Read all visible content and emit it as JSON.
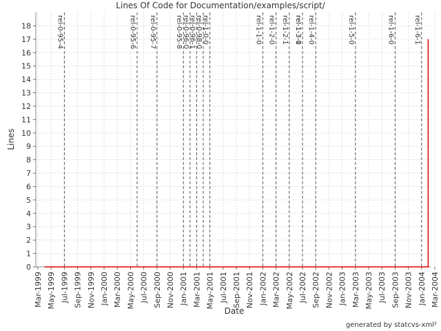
{
  "chart_data": {
    "type": "line",
    "title": "Lines Of Code for Documentation/examples/script/",
    "x_label": "Date",
    "y_label": "Lines",
    "footer": "generated by statcvs-xml²",
    "grid": true,
    "xlim": [
      "1999-03",
      "2004-03"
    ],
    "xticks": [
      {
        "value": "1999-03",
        "label": "Mar-1999"
      },
      {
        "value": "1999-05",
        "label": "May-1999"
      },
      {
        "value": "1999-07",
        "label": "Jul-1999"
      },
      {
        "value": "1999-09",
        "label": "Sep-1999"
      },
      {
        "value": "1999-11",
        "label": "Nov-1999"
      },
      {
        "value": "2000-01",
        "label": "Jan-2000"
      },
      {
        "value": "2000-03",
        "label": "Mar-2000"
      },
      {
        "value": "2000-05",
        "label": "May-2000"
      },
      {
        "value": "2000-07",
        "label": "Jul-2000"
      },
      {
        "value": "2000-09",
        "label": "Sep-2000"
      },
      {
        "value": "2000-11",
        "label": "Nov-2000"
      },
      {
        "value": "2001-01",
        "label": "Jan-2001"
      },
      {
        "value": "2001-03",
        "label": "Mar-2001"
      },
      {
        "value": "2001-05",
        "label": "May-2001"
      },
      {
        "value": "2001-07",
        "label": "Jul-2001"
      },
      {
        "value": "2001-09",
        "label": "Sep-2001"
      },
      {
        "value": "2001-11",
        "label": "Nov-2001"
      },
      {
        "value": "2002-01",
        "label": "Jan-2002"
      },
      {
        "value": "2002-03",
        "label": "Mar-2002"
      },
      {
        "value": "2002-05",
        "label": "May-2002"
      },
      {
        "value": "2002-07",
        "label": "Jul-2002"
      },
      {
        "value": "2002-09",
        "label": "Sep-2002"
      },
      {
        "value": "2002-11",
        "label": "Nov-2002"
      },
      {
        "value": "2003-01",
        "label": "Jan-2003"
      },
      {
        "value": "2003-03",
        "label": "Mar-2003"
      },
      {
        "value": "2003-05",
        "label": "May-2003"
      },
      {
        "value": "2003-07",
        "label": "Jul-2003"
      },
      {
        "value": "2003-09",
        "label": "Sep-2003"
      },
      {
        "value": "2003-11",
        "label": "Nov-2003"
      },
      {
        "value": "2004-01",
        "label": "Jan-2004"
      },
      {
        "value": "2004-03",
        "label": "Mar-2004"
      }
    ],
    "ylim": [
      0,
      19
    ],
    "yticks": [
      0,
      1,
      2,
      3,
      4,
      5,
      6,
      7,
      8,
      9,
      10,
      11,
      12,
      13,
      14,
      15,
      16,
      17,
      18
    ],
    "series": [
      {
        "name": "Lines",
        "color": "#e00000",
        "x": [
          "1999-04",
          "2004-02",
          "2004-02"
        ],
        "values": [
          0,
          0,
          17
        ]
      }
    ],
    "markers": [
      {
        "label": "rel-0-95-4",
        "x": "1999-07"
      },
      {
        "label": "rel-0-95-6",
        "x": "2000-06"
      },
      {
        "label": "rel-0-95-7",
        "x": "2000-09"
      },
      {
        "label": "rel-0-95-8",
        "x": "2001-01"
      },
      {
        "label": "rel-0-96-0",
        "x": "2001-02"
      },
      {
        "label": "rel-0-96-1",
        "x": "2001-03"
      },
      {
        "label": "rel-0-98-0",
        "x": "2001-04"
      },
      {
        "label": "rel-1-0-0",
        "x": "2001-05"
      },
      {
        "label": "rel-1-1-0",
        "x": "2002-01"
      },
      {
        "label": "rel-1-2-0",
        "x": "2002-03"
      },
      {
        "label": "rel-1-2-1",
        "x": "2002-05"
      },
      {
        "label": "rel-1-3-0",
        "x": "2002-07"
      },
      {
        "label": "rel-1-3-1",
        "x": "2002-07"
      },
      {
        "label": "rel-1-4-0",
        "x": "2002-09"
      },
      {
        "label": "rel-1-5-0",
        "x": "2003-03"
      },
      {
        "label": "rel-1-6-0",
        "x": "2003-09"
      },
      {
        "label": "rel-1-6-1",
        "x": "2004-01"
      }
    ]
  }
}
